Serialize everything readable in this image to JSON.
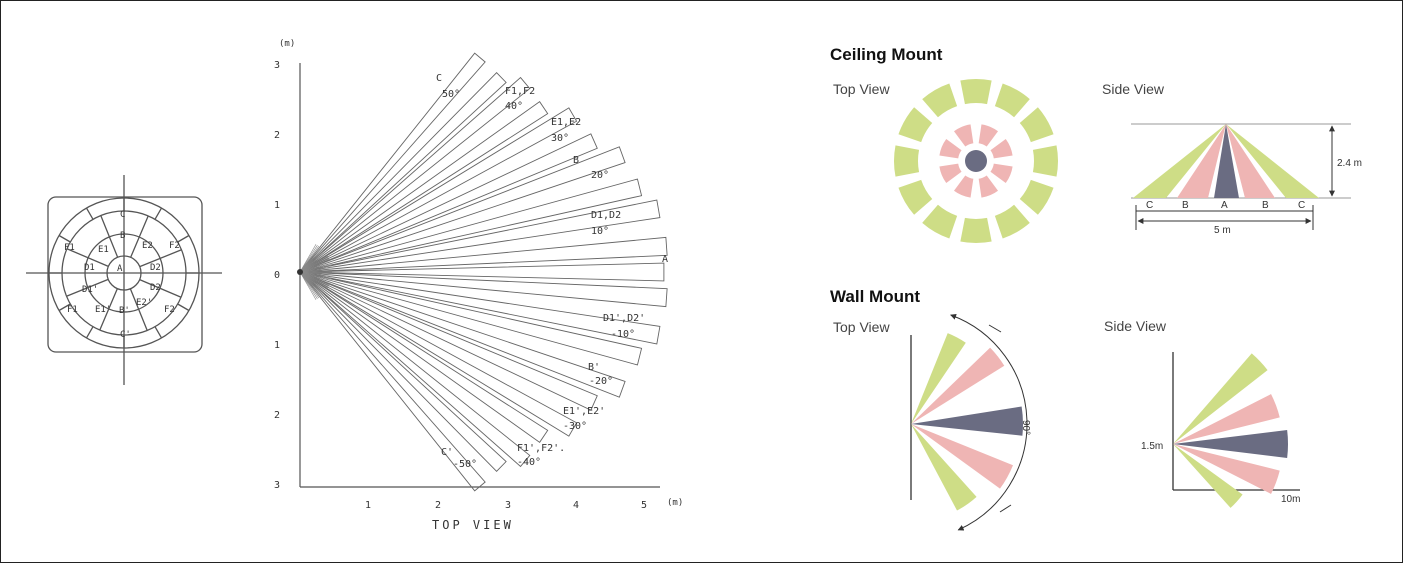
{
  "colors": {
    "green": "#cedd86",
    "pink": "#efb5b4",
    "slate": "#6a6c82",
    "line": "#555555",
    "ink": "#333333"
  },
  "left_diagram": {
    "zones": {
      "c": "C",
      "b": "B",
      "e1": "E1",
      "e2": "E2",
      "f1": "F1",
      "f2": "F2",
      "d1": "D1",
      "a": "A",
      "d2": "D2",
      "d1p": "D1'",
      "e1p": "E1'",
      "bp": "B'",
      "e2p": "E2'",
      "d2p": "D2",
      "f1p": "F1",
      "f2p": "F2",
      "cp": "C'"
    }
  },
  "top_view_chart": {
    "unit": "(m)",
    "x_ticks": [
      "1",
      "2",
      "3",
      "4",
      "5"
    ],
    "y_ticks": [
      "3",
      "2",
      "1",
      "0",
      "1",
      "2",
      "3"
    ],
    "caption": "TOP VIEW",
    "beam_labels": {
      "c_name": "C",
      "c_angle": "50°",
      "f_name": "F1,F2",
      "f_angle": "40°",
      "e_name": "E1,E2",
      "e_angle": "30°",
      "b_name": "B",
      "b_angle": "20°",
      "d_name": "D1,D2",
      "d_angle": "10°",
      "a_name": "A",
      "dp_name": "D1',D2'",
      "dp_angle": "-10°",
      "bp_name": "B'",
      "bp_angle": "-20°",
      "ep_name": "E1',E2'",
      "ep_angle": "-30°",
      "fp_name": "F1',F2'.",
      "fp_angle": "-40°",
      "cp_name": "C'",
      "cp_angle": "-50°"
    }
  },
  "ceiling_mount": {
    "title": "Ceiling Mount",
    "top_view_label": "Top View",
    "side_view_label": "Side View",
    "height_label": "2.4 m",
    "width_label": "5 m",
    "zone_labels": [
      "C",
      "B",
      "A",
      "B",
      "C"
    ]
  },
  "wall_mount": {
    "title": "Wall Mount",
    "top_view_label": "Top View",
    "side_view_label": "Side View",
    "angle_label": "90°",
    "height_label": "1.5m",
    "range_label": "10m"
  }
}
